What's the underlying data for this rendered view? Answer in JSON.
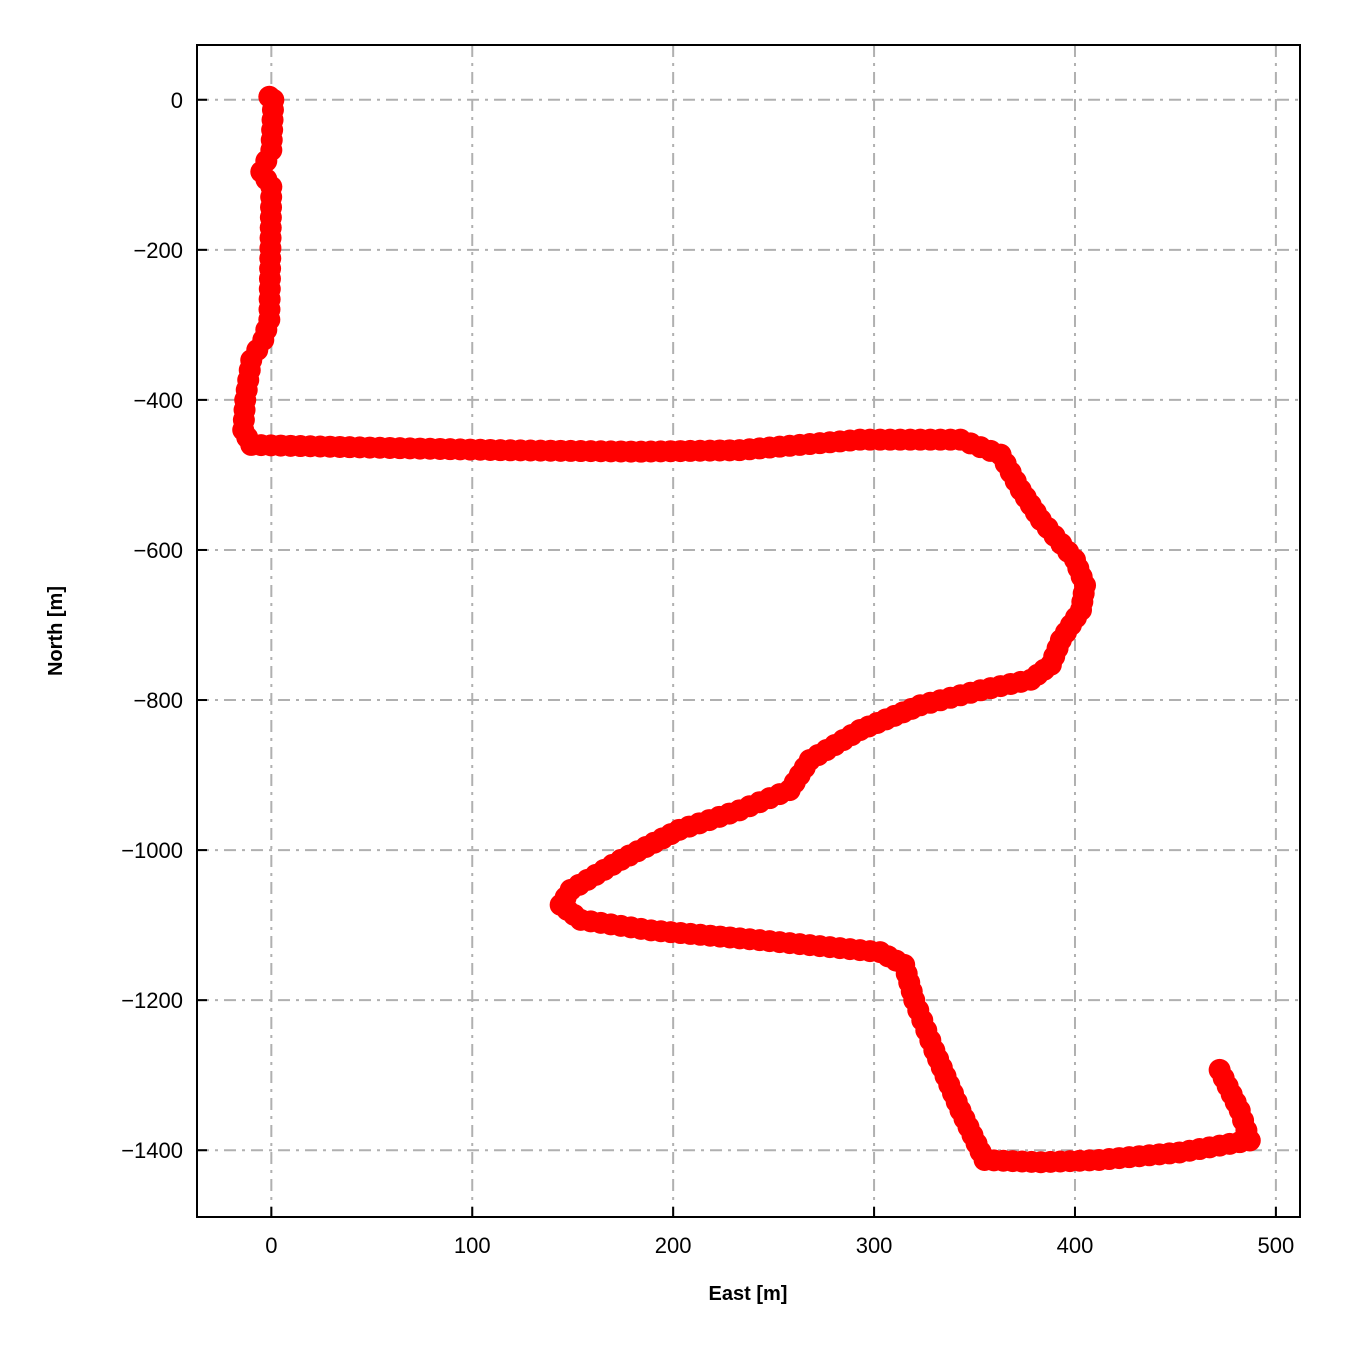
{
  "chart_data": {
    "type": "scatter",
    "xlabel": "East [m]",
    "ylabel": "North [m]",
    "xlim": [
      -37,
      512
    ],
    "ylim": [
      -1489,
      73
    ],
    "xticks": [
      0,
      100,
      200,
      300,
      400,
      500
    ],
    "yticks": [
      0,
      -200,
      -400,
      -600,
      -800,
      -1000,
      -1200,
      -1400
    ],
    "xtick_labels": [
      "0",
      "100",
      "200",
      "300",
      "400",
      "500"
    ],
    "ytick_labels": [
      "0",
      "−200",
      "−400",
      "−600",
      "−800",
      "−1000",
      "−1200",
      "−1400"
    ],
    "grid": true,
    "grid_style": "dash-dot",
    "marker_color": "#ff0000",
    "grid_color": "#b0b0b0",
    "path": [
      [
        -1,
        4
      ],
      [
        1,
        0
      ],
      [
        0,
        -67
      ],
      [
        -5,
        -96
      ],
      [
        0,
        -116
      ],
      [
        -1,
        -293
      ],
      [
        -4,
        -320
      ],
      [
        -10,
        -347
      ],
      [
        -13,
        -400
      ],
      [
        -14,
        -440
      ],
      [
        -10,
        -460
      ],
      [
        39,
        -463
      ],
      [
        114,
        -467
      ],
      [
        184,
        -469
      ],
      [
        233,
        -467
      ],
      [
        293,
        -453
      ],
      [
        343,
        -453
      ],
      [
        363,
        -473
      ],
      [
        373,
        -520
      ],
      [
        383,
        -560
      ],
      [
        400,
        -613
      ],
      [
        405,
        -647
      ],
      [
        403,
        -680
      ],
      [
        393,
        -720
      ],
      [
        388,
        -753
      ],
      [
        378,
        -773
      ],
      [
        353,
        -787
      ],
      [
        323,
        -807
      ],
      [
        293,
        -840
      ],
      [
        268,
        -880
      ],
      [
        258,
        -920
      ],
      [
        233,
        -947
      ],
      [
        203,
        -973
      ],
      [
        174,
        -1013
      ],
      [
        149,
        -1053
      ],
      [
        144,
        -1073
      ],
      [
        154,
        -1093
      ],
      [
        189,
        -1107
      ],
      [
        243,
        -1120
      ],
      [
        303,
        -1136
      ],
      [
        315,
        -1153
      ],
      [
        320,
        -1200
      ],
      [
        330,
        -1267
      ],
      [
        343,
        -1347
      ],
      [
        355,
        -1413
      ],
      [
        383,
        -1416
      ],
      [
        412,
        -1413
      ],
      [
        452,
        -1403
      ],
      [
        487,
        -1387
      ],
      [
        482,
        -1347
      ],
      [
        472,
        -1293
      ]
    ]
  }
}
